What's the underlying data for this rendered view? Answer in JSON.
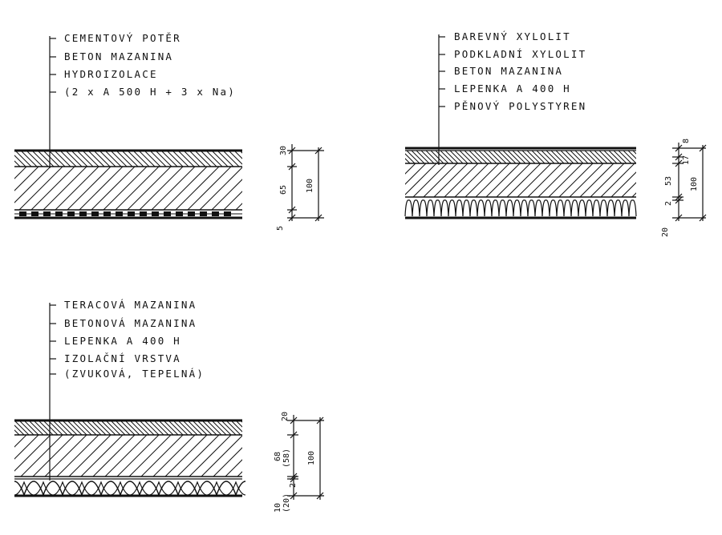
{
  "colors": {
    "ink": "#111111",
    "paper": "#ffffff"
  },
  "sections": [
    {
      "layers": [
        "CEMENTOVÝ POTĚR",
        "BETON MAZANINA",
        "HYDROIZOLACE",
        "(2 x A 500 H + 3 x Na)"
      ],
      "dims": [
        "30",
        "65",
        "5",
        "100"
      ]
    },
    {
      "layers": [
        "BAREVNÝ XYLOLIT",
        "PODKLADNÍ XYLOLIT",
        "BETON MAZANINA",
        "LEPENKA A 400 H",
        "PĚNOVÝ POLYSTYREN"
      ],
      "dims": [
        "8",
        "17",
        "53",
        "2",
        "20",
        "100"
      ]
    },
    {
      "layers": [
        "TERACOVÁ MAZANINA",
        "BETONOVÁ MAZANINA",
        "LEPENKA A 400 H",
        "IZOLAČNÍ VRSTVA",
        "(ZVUKOVÁ, TEPELNÁ)"
      ],
      "dims": [
        "20",
        "68",
        "(58)",
        "2",
        "10",
        "(20)",
        "100"
      ]
    }
  ]
}
